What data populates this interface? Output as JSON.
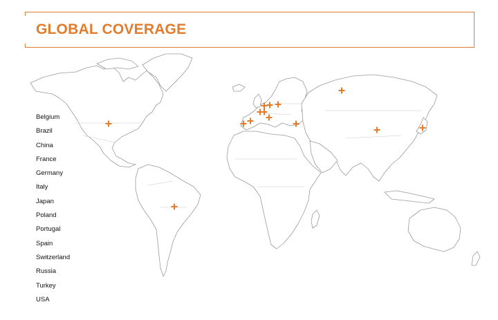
{
  "header": {
    "title": "GLOBAL COVERAGE"
  },
  "legend": {
    "countries": [
      "Belgium",
      "Brazil",
      "China",
      "France",
      "Germany",
      "Italy",
      "Japan",
      "Poland",
      "Portugal",
      "Spain",
      "Switzerland",
      "Russia",
      "Turkey",
      "USA"
    ]
  },
  "map": {
    "marker_color": "#e27c2c",
    "marker_icon": "plus-marker-icon",
    "markers": [
      {
        "country": "USA"
      },
      {
        "country": "Brazil"
      },
      {
        "country": "Portugal"
      },
      {
        "country": "Spain"
      },
      {
        "country": "France"
      },
      {
        "country": "Belgium"
      },
      {
        "country": "Germany"
      },
      {
        "country": "Poland"
      },
      {
        "country": "Switzerland"
      },
      {
        "country": "Italy"
      },
      {
        "country": "Turkey"
      },
      {
        "country": "Russia"
      },
      {
        "country": "China"
      },
      {
        "country": "Japan"
      }
    ]
  }
}
